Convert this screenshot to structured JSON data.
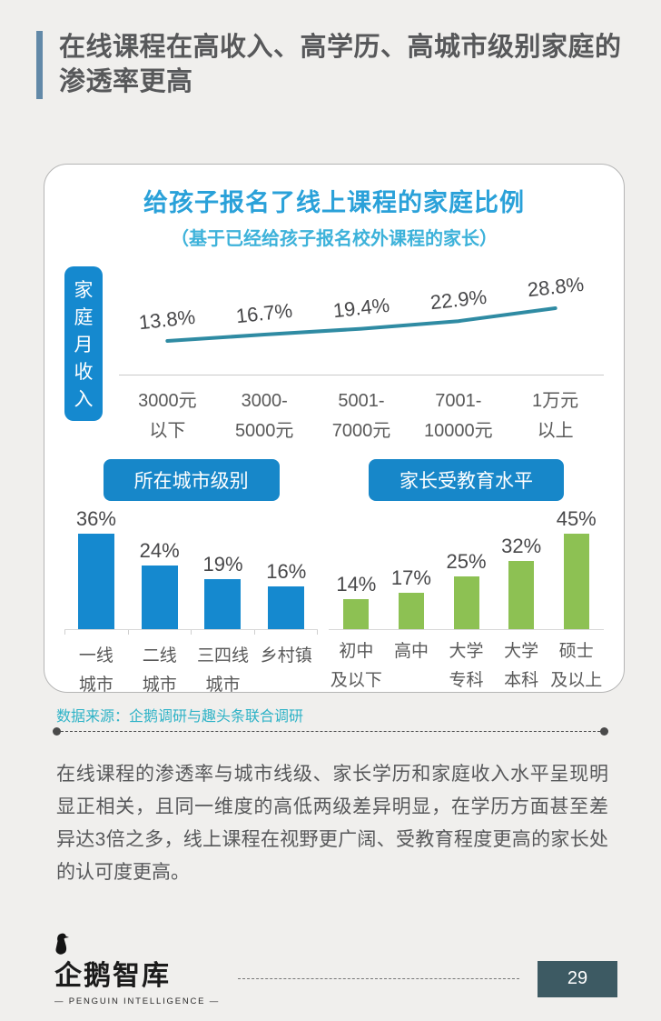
{
  "header": {
    "title": "在线课程在高收入、高学历、高城市级别家庭的渗透率更高"
  },
  "card": {
    "title": "给孩子报名了线上课程的家庭比例",
    "subtitle": "（基于已经给孩子报名校外课程的家长）",
    "income_axis_label": "家庭月收入",
    "section1_label": "所在城市级别",
    "section2_label": "家长受教育水平"
  },
  "chart_data": [
    {
      "type": "line",
      "title": "家庭月收入",
      "categories": [
        "3000元以下",
        "3000-5000元",
        "5001-7000元",
        "7001-10000元",
        "1万元以上"
      ],
      "categories_lines": [
        [
          "3000元",
          "以下"
        ],
        [
          "3000-",
          "5000元"
        ],
        [
          "5001-",
          "7000元"
        ],
        [
          "7001-",
          "10000元"
        ],
        [
          "1万元",
          "以上"
        ]
      ],
      "values": [
        13.8,
        16.7,
        19.4,
        22.9,
        28.8
      ],
      "unit": "%",
      "line_color": "#2f8ba3",
      "ylim": [
        0,
        35
      ],
      "grid": false,
      "legend": "none"
    },
    {
      "type": "bar",
      "title": "所在城市级别",
      "categories": [
        "一线城市",
        "二线城市",
        "三四线城市",
        "乡村镇"
      ],
      "categories_lines": [
        [
          "一线",
          "城市"
        ],
        [
          "二线",
          "城市"
        ],
        [
          "三四线",
          "城市"
        ],
        [
          "乡村镇"
        ]
      ],
      "values": [
        36,
        24,
        19,
        16
      ],
      "unit": "%",
      "bar_color": "#1589cf",
      "ylim": [
        0,
        40
      ],
      "grid": false,
      "legend": "none"
    },
    {
      "type": "bar",
      "title": "家长受教育水平",
      "categories": [
        "初中及以下",
        "高中",
        "大学专科",
        "大学本科",
        "硕士及以上"
      ],
      "categories_lines": [
        [
          "初中",
          "及以下"
        ],
        [
          "高中"
        ],
        [
          "大学",
          "专科"
        ],
        [
          "大学",
          "本科"
        ],
        [
          "硕士",
          "及以上"
        ]
      ],
      "values": [
        14,
        17,
        25,
        32,
        45
      ],
      "unit": "%",
      "bar_color": "#8dc153",
      "ylim": [
        0,
        50
      ],
      "grid": false,
      "legend": "none"
    }
  ],
  "source": "数据来源：企鹅调研与趣头条联合调研",
  "body_text": "在线课程的渗透率与城市线级、家长学历和家庭收入水平呈现明显正相关，且同一维度的高低两级差异明显，在学历方面甚至差异达3倍之多，线上课程在视野更广阔、受教育程度更高的家长处的认可度更高。",
  "footer": {
    "logo_text": "企鹅智库",
    "logo_subtext": "— PENGUIN INTELLIGENCE —",
    "page_number": "29"
  },
  "colors": {
    "accent_bar": "#6289a8",
    "title_blue": "#2aa1d9",
    "subtitle_cyan": "#3db2da",
    "pill_blue": "#1787c9",
    "bar_blue": "#1589cf",
    "bar_green": "#8dc153",
    "line_teal": "#2f8ba3",
    "source_teal": "#2fb3c7",
    "page_box": "#3d5a63",
    "background": "#f0efed"
  }
}
